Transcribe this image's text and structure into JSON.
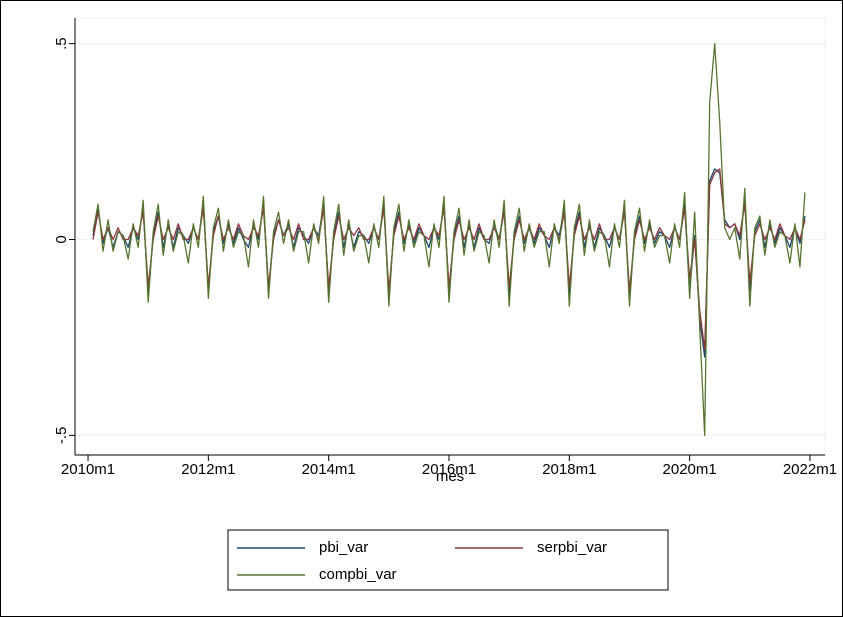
{
  "chart_data": {
    "type": "line",
    "x_label": "mes",
    "xlim": [
      597.4,
      747
    ],
    "xticks": [
      {
        "value": 600,
        "label": "2010m1"
      },
      {
        "value": 624,
        "label": "2012m1"
      },
      {
        "value": 648,
        "label": "2014m1"
      },
      {
        "value": 672,
        "label": "2016m1"
      },
      {
        "value": 696,
        "label": "2018m1"
      },
      {
        "value": 720,
        "label": "2020m1"
      },
      {
        "value": 744,
        "label": "2022m1"
      }
    ],
    "ylim": [
      -0.55,
      0.55
    ],
    "yticks": [
      {
        "value": -0.5,
        "label": "-.5"
      },
      0,
      {
        "value": 0.5,
        "label": ".5"
      }
    ],
    "grid": true,
    "x": [
      601,
      602,
      603,
      604,
      605,
      606,
      607,
      608,
      609,
      610,
      611,
      612,
      613,
      614,
      615,
      616,
      617,
      618,
      619,
      620,
      621,
      622,
      623,
      624,
      625,
      626,
      627,
      628,
      629,
      630,
      631,
      632,
      633,
      634,
      635,
      636,
      637,
      638,
      639,
      640,
      641,
      642,
      643,
      644,
      645,
      646,
      647,
      648,
      649,
      650,
      651,
      652,
      653,
      654,
      655,
      656,
      657,
      658,
      659,
      660,
      661,
      662,
      663,
      664,
      665,
      666,
      667,
      668,
      669,
      670,
      671,
      672,
      673,
      674,
      675,
      676,
      677,
      678,
      679,
      680,
      681,
      682,
      683,
      684,
      685,
      686,
      687,
      688,
      689,
      690,
      691,
      692,
      693,
      694,
      695,
      696,
      697,
      698,
      699,
      700,
      701,
      702,
      703,
      704,
      705,
      706,
      707,
      708,
      709,
      710,
      711,
      712,
      713,
      714,
      715,
      716,
      717,
      718,
      719,
      720,
      721,
      722,
      723,
      724,
      725,
      726,
      727,
      728,
      729,
      730,
      731,
      732,
      733,
      734,
      735,
      736,
      737,
      738,
      739,
      740,
      741,
      742,
      743
    ],
    "series": [
      {
        "name": "pbi_var",
        "color": "#1a476f",
        "values": [
          0.01,
          0.08,
          -0.01,
          0.03,
          -0.02,
          0.02,
          0.01,
          -0.02,
          0.03,
          0.0,
          0.08,
          -0.14,
          0.01,
          0.07,
          -0.02,
          0.04,
          -0.02,
          0.03,
          0.01,
          -0.01,
          0.03,
          0.0,
          0.09,
          -0.13,
          0.02,
          0.06,
          -0.01,
          0.04,
          -0.01,
          0.03,
          0.0,
          -0.02,
          0.04,
          0.0,
          0.09,
          -0.13,
          0.01,
          0.05,
          0.01,
          0.04,
          -0.02,
          0.03,
          0.01,
          -0.01,
          0.03,
          0.01,
          0.09,
          -0.14,
          0.01,
          0.07,
          -0.02,
          0.04,
          -0.02,
          0.02,
          0.01,
          -0.01,
          0.03,
          0.0,
          0.09,
          -0.15,
          0.02,
          0.07,
          -0.01,
          0.04,
          -0.01,
          0.03,
          0.01,
          -0.02,
          0.03,
          0.0,
          0.09,
          -0.13,
          0.01,
          0.06,
          -0.02,
          0.04,
          -0.02,
          0.03,
          0.0,
          -0.01,
          0.04,
          0.0,
          0.08,
          -0.14,
          0.01,
          0.06,
          -0.01,
          0.03,
          -0.01,
          0.03,
          0.01,
          -0.02,
          0.03,
          0.01,
          0.08,
          -0.14,
          0.02,
          0.07,
          -0.02,
          0.04,
          -0.02,
          0.03,
          0.01,
          -0.02,
          0.03,
          0.0,
          0.08,
          -0.15,
          0.01,
          0.06,
          -0.01,
          0.04,
          -0.01,
          0.02,
          0.01,
          -0.02,
          0.03,
          0.0,
          0.09,
          -0.13,
          0.01,
          -0.2,
          -0.3,
          0.15,
          0.18,
          0.17,
          0.05,
          0.03,
          0.04,
          0.0,
          0.1,
          -0.13,
          0.02,
          0.05,
          -0.02,
          0.04,
          -0.01,
          0.03,
          0.01,
          -0.02,
          0.03,
          -0.01,
          0.06
        ]
      },
      {
        "name": "serpbi_var",
        "color": "#90353b",
        "values": [
          0.0,
          0.07,
          0.0,
          0.03,
          0.0,
          0.03,
          0.0,
          0.0,
          0.03,
          0.01,
          0.07,
          -0.12,
          0.0,
          0.06,
          0.0,
          0.03,
          0.0,
          0.04,
          0.0,
          0.0,
          0.03,
          0.0,
          0.08,
          -0.12,
          0.01,
          0.06,
          0.0,
          0.03,
          0.0,
          0.04,
          0.01,
          0.0,
          0.03,
          0.01,
          0.08,
          -0.12,
          0.0,
          0.05,
          0.01,
          0.03,
          0.0,
          0.04,
          0.0,
          0.0,
          0.03,
          0.0,
          0.08,
          -0.12,
          0.0,
          0.06,
          0.0,
          0.03,
          0.01,
          0.03,
          0.0,
          0.0,
          0.03,
          0.0,
          0.08,
          -0.13,
          0.01,
          0.06,
          0.0,
          0.03,
          0.0,
          0.04,
          0.01,
          0.0,
          0.03,
          0.01,
          0.08,
          -0.12,
          0.0,
          0.05,
          0.0,
          0.03,
          0.0,
          0.04,
          0.0,
          0.0,
          0.03,
          0.0,
          0.07,
          -0.12,
          0.0,
          0.05,
          0.0,
          0.03,
          0.0,
          0.04,
          0.01,
          0.0,
          0.03,
          0.0,
          0.07,
          -0.12,
          0.01,
          0.06,
          0.0,
          0.03,
          0.0,
          0.04,
          0.0,
          0.0,
          0.03,
          0.0,
          0.07,
          -0.13,
          0.0,
          0.05,
          0.0,
          0.03,
          0.0,
          0.03,
          0.01,
          0.0,
          0.03,
          0.0,
          0.08,
          -0.1,
          0.0,
          -0.18,
          -0.28,
          0.14,
          0.17,
          0.18,
          0.04,
          0.03,
          0.04,
          0.01,
          0.09,
          -0.11,
          0.01,
          0.04,
          0.0,
          0.03,
          0.0,
          0.04,
          0.01,
          0.0,
          0.03,
          0.0,
          0.05
        ]
      },
      {
        "name": "compbi_var",
        "color": "#55752f",
        "values": [
          0.02,
          0.09,
          -0.03,
          0.05,
          -0.03,
          0.02,
          0.01,
          -0.05,
          0.04,
          -0.02,
          0.1,
          -0.16,
          0.02,
          0.09,
          -0.04,
          0.05,
          -0.03,
          0.02,
          0.01,
          -0.06,
          0.04,
          -0.02,
          0.11,
          -0.15,
          0.03,
          0.08,
          -0.03,
          0.05,
          -0.02,
          0.02,
          0.01,
          -0.07,
          0.05,
          -0.02,
          0.11,
          -0.15,
          0.02,
          0.07,
          -0.01,
          0.05,
          -0.03,
          0.02,
          0.02,
          -0.06,
          0.04,
          -0.01,
          0.11,
          -0.16,
          0.02,
          0.09,
          -0.04,
          0.05,
          -0.03,
          0.01,
          0.01,
          -0.06,
          0.04,
          -0.02,
          0.11,
          -0.17,
          0.03,
          0.09,
          -0.03,
          0.05,
          -0.02,
          0.02,
          0.01,
          -0.07,
          0.04,
          -0.02,
          0.11,
          -0.16,
          0.02,
          0.08,
          -0.04,
          0.05,
          -0.03,
          0.02,
          0.01,
          -0.06,
          0.05,
          -0.02,
          0.1,
          -0.17,
          0.02,
          0.08,
          -0.03,
          0.04,
          -0.02,
          0.02,
          0.02,
          -0.07,
          0.04,
          -0.01,
          0.1,
          -0.17,
          0.03,
          0.09,
          -0.04,
          0.05,
          -0.03,
          0.02,
          0.01,
          -0.07,
          0.04,
          -0.02,
          0.1,
          -0.17,
          0.02,
          0.08,
          -0.03,
          0.05,
          -0.02,
          0.01,
          0.01,
          -0.06,
          0.04,
          -0.02,
          0.12,
          -0.15,
          0.07,
          -0.22,
          -0.5,
          0.35,
          0.5,
          0.3,
          0.03,
          0.0,
          0.03,
          -0.05,
          0.13,
          -0.17,
          0.03,
          0.06,
          -0.04,
          0.05,
          -0.02,
          0.02,
          0.01,
          -0.06,
          0.04,
          -0.07,
          0.12
        ]
      }
    ]
  }
}
